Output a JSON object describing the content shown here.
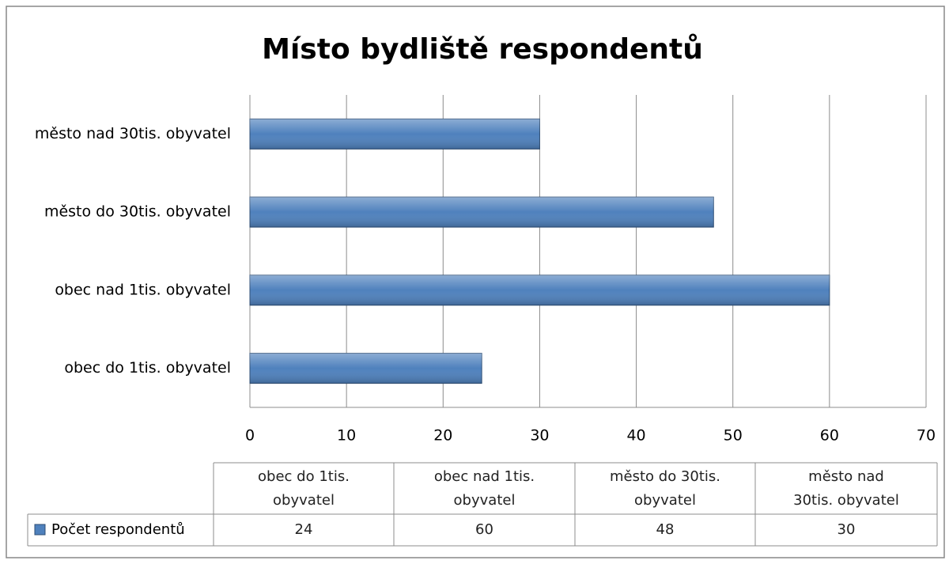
{
  "chart_data": {
    "type": "barh",
    "title": "Místo bydliště respondentů",
    "categories": [
      "obec do 1tis. obyvatel",
      "obec nad 1tis. obyvatel",
      "město do 30tis. obyvatel",
      "město nad 30tis. obyvatel"
    ],
    "series": [
      {
        "name": "Počet respondentů",
        "color": "#4f81bd",
        "values": [
          24,
          60,
          48,
          30
        ]
      }
    ],
    "xlim": [
      0,
      70
    ],
    "xticks": [
      0,
      10,
      20,
      30,
      40,
      50,
      60,
      70
    ],
    "grid": true,
    "data_table": true
  }
}
